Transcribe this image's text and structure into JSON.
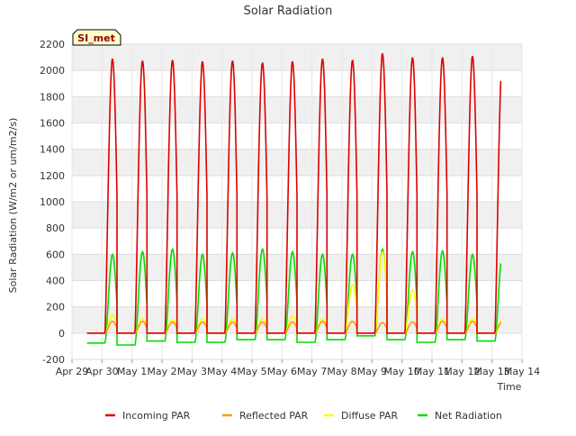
{
  "chart_data": {
    "type": "line",
    "title": "Solar Radiation",
    "xlabel": "Time",
    "ylabel": "Solar Radiation (W/m2 or um/m2/s)",
    "ylim": [
      -200,
      2200
    ],
    "yticks": [
      -200,
      0,
      200,
      400,
      600,
      800,
      1000,
      1200,
      1400,
      1600,
      1800,
      2000,
      2200
    ],
    "xlim": [
      0,
      15
    ],
    "xticks": [
      {
        "x": 0,
        "label": "Apr 29"
      },
      {
        "x": 1,
        "label": "Apr 30"
      },
      {
        "x": 2,
        "label": "May 1"
      },
      {
        "x": 3,
        "label": "May 2"
      },
      {
        "x": 4,
        "label": "May 3"
      },
      {
        "x": 5,
        "label": "May 4"
      },
      {
        "x": 6,
        "label": "May 5"
      },
      {
        "x": 7,
        "label": "May 6"
      },
      {
        "x": 8,
        "label": "May 7"
      },
      {
        "x": 9,
        "label": "May 8"
      },
      {
        "x": 10,
        "label": "May 9"
      },
      {
        "x": 11,
        "label": "May 10"
      },
      {
        "x": 12,
        "label": "May 11"
      },
      {
        "x": 13,
        "label": "May 12"
      },
      {
        "x": 14,
        "label": "May 13"
      },
      {
        "x": 15,
        "label": "May 14"
      }
    ],
    "grid": true,
    "legend_position": "bottom",
    "annotation": "SI_met",
    "series": [
      {
        "name": "Incoming PAR",
        "color": "#dd0000",
        "daily_peaks": [
          2090,
          2075,
          2080,
          2070,
          2075,
          2060,
          2070,
          2090,
          2080,
          2130,
          2100,
          2100,
          2110,
          2100
        ]
      },
      {
        "name": "Reflected PAR",
        "color": "#ff9900",
        "daily_peaks": [
          90,
          90,
          85,
          85,
          85,
          85,
          85,
          90,
          90,
          80,
          85,
          90,
          90,
          90
        ]
      },
      {
        "name": "Diffuse PAR",
        "color": "#ffff00",
        "daily_peaks": [
          140,
          110,
          100,
          110,
          110,
          110,
          130,
          110,
          370,
          620,
          330,
          110,
          110,
          110
        ]
      },
      {
        "name": "Net Radiation",
        "color": "#00dd00",
        "daily_peaks": [
          600,
          620,
          640,
          600,
          610,
          640,
          620,
          600,
          600,
          640,
          620,
          625,
          600,
          600
        ],
        "night_values": [
          -75,
          -90,
          -60,
          -70,
          -70,
          -50,
          -50,
          -70,
          -50,
          -20,
          -50,
          -70,
          -50,
          -60
        ]
      }
    ]
  }
}
